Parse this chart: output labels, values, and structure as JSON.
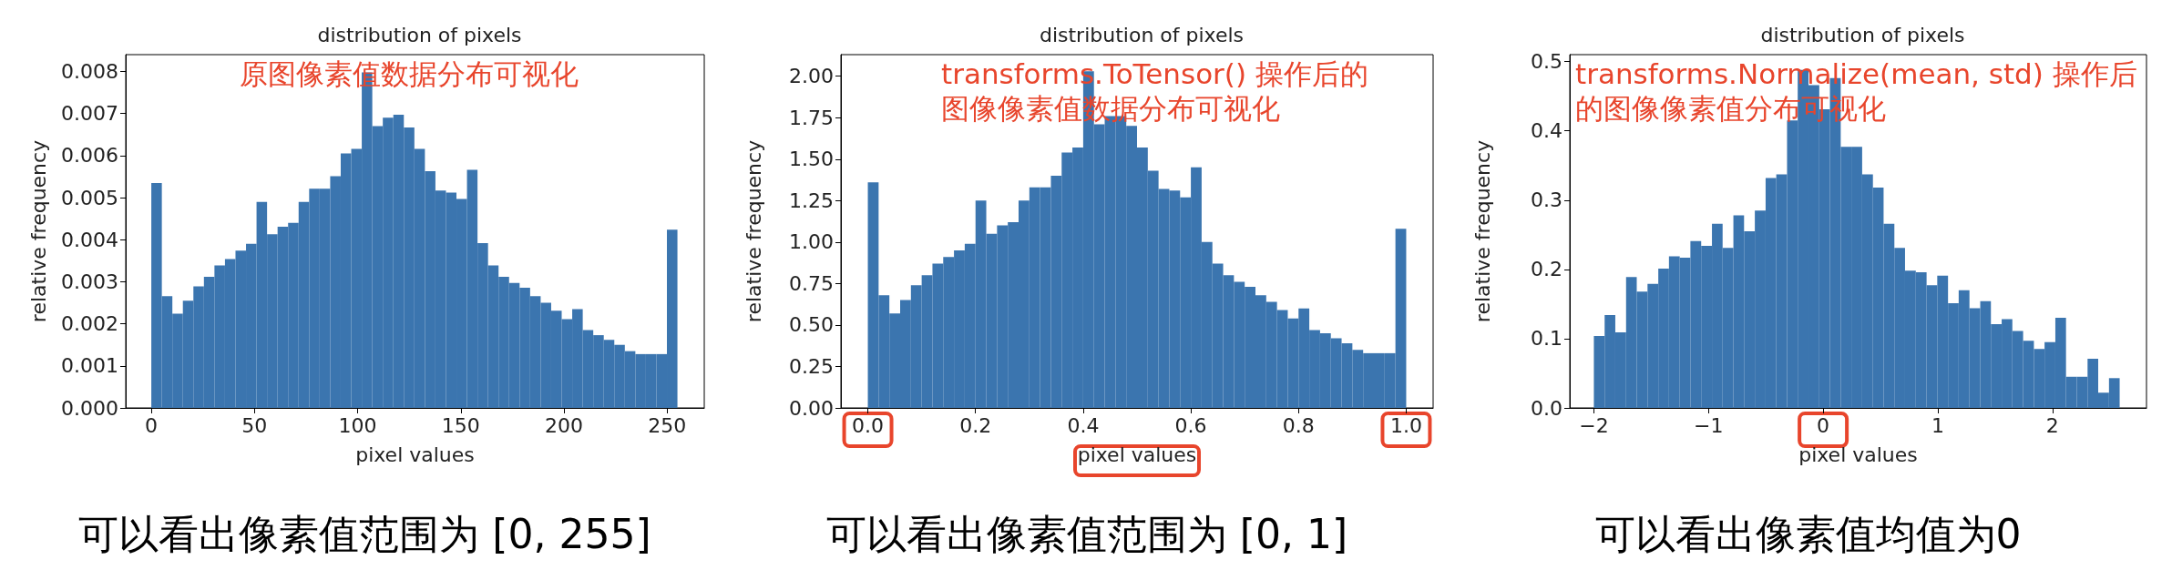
{
  "chart_data": [
    {
      "type": "histogram",
      "title": "distribution of pixels",
      "xlabel": "pixel values",
      "ylabel": "relative frequency",
      "color": "#3b75af",
      "grid": false,
      "annotations": [
        "原图像素值数据分布可视化",
        "可以看出像素值范围为 [0, 255]"
      ],
      "bins": [
        0,
        5.1,
        10.2,
        15.3,
        20.4,
        25.5,
        30.6,
        35.7,
        40.8,
        45.9,
        51,
        56.1,
        61.2,
        66.3,
        71.4,
        76.5,
        81.6,
        86.7,
        91.8,
        96.9,
        102,
        107.1,
        112.2,
        117.3,
        122.4,
        127.5,
        132.6,
        137.7,
        142.8,
        147.9,
        153,
        158.1,
        163.2,
        168.3,
        173.4,
        178.5,
        183.6,
        188.7,
        193.8,
        198.9,
        204,
        209.1,
        214.2,
        219.3,
        224.4,
        229.5,
        234.6,
        239.7,
        244.8,
        249.9,
        255
      ],
      "values": [
        0.00535,
        0.00266,
        0.00224,
        0.00255,
        0.00289,
        0.00312,
        0.00339,
        0.00354,
        0.00374,
        0.0039,
        0.0049,
        0.00413,
        0.00431,
        0.0044,
        0.0049,
        0.00521,
        0.00521,
        0.00551,
        0.00605,
        0.00616,
        0.00798,
        0.0067,
        0.0069,
        0.00697,
        0.00667,
        0.00616,
        0.00563,
        0.00517,
        0.00512,
        0.00497,
        0.00566,
        0.00392,
        0.00339,
        0.00312,
        0.00297,
        0.00286,
        0.00266,
        0.0025,
        0.00231,
        0.00211,
        0.00235,
        0.00185,
        0.00173,
        0.00162,
        0.0015,
        0.00135,
        0.00128,
        0.00128,
        0.00128,
        0.00424
      ],
      "xlim": [
        -12.4,
        268
      ],
      "ylim": [
        0,
        0.0084
      ],
      "xticks": [
        0,
        50,
        100,
        150,
        200,
        250
      ],
      "yticks": [
        {
          "value": 0,
          "label": "0.000"
        },
        0.001,
        0.002,
        0.003,
        0.004,
        0.005,
        0.006,
        0.007,
        0.008
      ]
    },
    {
      "type": "histogram",
      "title": "distribution of pixels",
      "xlabel": "pixel values",
      "ylabel": "relative frequency",
      "color": "#3b75af",
      "grid": false,
      "annotations": [
        "transforms.ToTensor() 操作后的图像像素值数据分布可视化",
        "可以看出像素值范围为 [0, 1]"
      ],
      "bins": [
        0,
        0.02,
        0.04,
        0.06,
        0.08,
        0.1,
        0.12,
        0.14,
        0.16,
        0.18,
        0.2,
        0.22,
        0.24,
        0.26,
        0.28,
        0.3,
        0.32,
        0.34,
        0.36,
        0.38,
        0.4,
        0.42,
        0.44,
        0.46,
        0.48,
        0.5,
        0.52,
        0.54,
        0.56,
        0.58,
        0.6,
        0.62,
        0.64,
        0.66,
        0.68,
        0.7,
        0.72,
        0.74,
        0.76,
        0.78,
        0.8,
        0.82,
        0.84,
        0.86,
        0.88,
        0.9,
        0.92,
        0.94,
        0.96,
        0.98,
        1
      ],
      "values": [
        1.36,
        0.68,
        0.57,
        0.65,
        0.74,
        0.8,
        0.87,
        0.91,
        0.95,
        0.99,
        1.25,
        1.05,
        1.1,
        1.12,
        1.25,
        1.33,
        1.33,
        1.4,
        1.54,
        1.57,
        2.03,
        1.71,
        1.76,
        1.76,
        1.7,
        1.57,
        1.43,
        1.32,
        1.31,
        1.27,
        1.45,
        1.0,
        0.87,
        0.8,
        0.76,
        0.73,
        0.68,
        0.64,
        0.59,
        0.54,
        0.6,
        0.47,
        0.45,
        0.42,
        0.39,
        0.35,
        0.33,
        0.33,
        0.33,
        1.08
      ],
      "xlim": [
        -0.05,
        1.05
      ],
      "ylim": [
        0,
        2.13
      ],
      "xticks": [
        {
          "value": 0,
          "label": "0.0"
        },
        0.2,
        0.4,
        0.6,
        0.8,
        {
          "value": 1,
          "label": "1.0"
        }
      ],
      "yticks": [
        {
          "value": 0,
          "label": "0.00"
        },
        0.25,
        {
          "value": 0.5,
          "label": "0.50"
        },
        0.75,
        {
          "value": 1,
          "label": "1.00"
        },
        1.25,
        {
          "value": 1.5,
          "label": "1.50"
        },
        1.75,
        {
          "value": 2,
          "label": "2.00"
        }
      ]
    },
    {
      "type": "histogram",
      "title": "distribution of pixels",
      "xlabel": "pixel values",
      "ylabel": "relative frequency",
      "color": "#3b75af",
      "grid": false,
      "annotations": [
        "transforms.Normalize(mean, std) 操作后的图像像素值分布可视化",
        "可以看出像素值均值为0"
      ],
      "bins": [
        -2,
        -1.906,
        -1.813,
        -1.719,
        -1.626,
        -1.532,
        -1.438,
        -1.345,
        -1.251,
        -1.158,
        -1.064,
        -0.97,
        -0.877,
        -0.783,
        -0.69,
        -0.596,
        -0.502,
        -0.409,
        -0.315,
        -0.222,
        -0.128,
        -0.034,
        0.059,
        0.153,
        0.246,
        0.34,
        0.434,
        0.527,
        0.621,
        0.714,
        0.808,
        0.902,
        0.995,
        1.089,
        1.182,
        1.276,
        1.37,
        1.463,
        1.557,
        1.65,
        1.744,
        1.838,
        1.931,
        2.025,
        2.118,
        2.212,
        2.306,
        2.399,
        2.493,
        2.586
      ],
      "values": [
        0.104,
        0.134,
        0.109,
        0.189,
        0.168,
        0.179,
        0.201,
        0.219,
        0.217,
        0.241,
        0.234,
        0.266,
        0.231,
        0.278,
        0.255,
        0.285,
        0.332,
        0.337,
        0.415,
        0.488,
        0.466,
        0.431,
        0.476,
        0.377,
        0.377,
        0.337,
        0.318,
        0.266,
        0.231,
        0.198,
        0.196,
        0.177,
        0.191,
        0.151,
        0.17,
        0.144,
        0.154,
        0.121,
        0.128,
        0.111,
        0.097,
        0.085,
        0.095,
        0.13,
        0.045,
        0.045,
        0.071,
        0.022,
        0.043
      ],
      "xlim": [
        -2.21,
        2.82
      ],
      "ylim": [
        0,
        0.51
      ],
      "xticks": [
        {
          "value": -2,
          "label": "−2"
        },
        {
          "value": -1,
          "label": "−1"
        },
        0,
        1,
        2
      ],
      "yticks": [
        {
          "value": 0,
          "label": "0.0"
        },
        0.1,
        0.2,
        0.3,
        0.4,
        0.5
      ]
    }
  ]
}
